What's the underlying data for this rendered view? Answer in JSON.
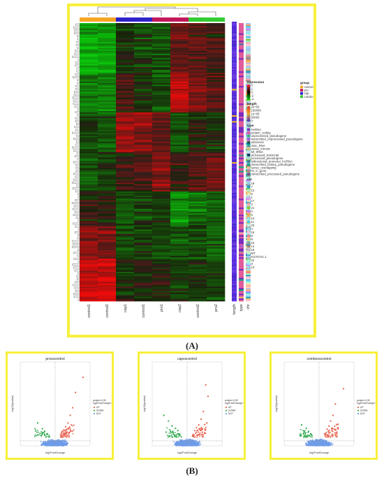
{
  "panelA": {
    "caption": "(A)",
    "samples": [
      "control1",
      "control2",
      "cap1",
      "control1",
      "pro1",
      "cap2",
      "control2",
      "pro2"
    ],
    "sample_groups": [
      "control",
      "control",
      "cap",
      "cap",
      "pro",
      "pro",
      "combo",
      "combo"
    ],
    "side_tracks": [
      "length",
      "type",
      "chr"
    ],
    "legend": {
      "group": {
        "title": "group",
        "items": [
          {
            "label": "control",
            "color": "#f5a623"
          },
          {
            "label": "pro",
            "color": "#c2185b"
          },
          {
            "label": "cap",
            "color": "#2e22c9"
          },
          {
            "label": "combo",
            "color": "#33cc33"
          }
        ]
      },
      "expression": {
        "title": "expression",
        "labels": [
          "4",
          "2",
          "0",
          "-2",
          "-4"
        ]
      },
      "length": {
        "title": "length",
        "labels": [
          "2e+05",
          "150000",
          "1e+05",
          "50000",
          "0"
        ]
      },
      "type": {
        "title": "type",
        "items": [
          {
            "label": "lncRNA",
            "color": "#7b2cbf"
          },
          {
            "label": "protein_coding",
            "color": "#e05c9b"
          },
          {
            "label": "unprocessed_pseudogene",
            "color": "#3bb273"
          },
          {
            "label": "transcribed_unprocessed_pseudogene",
            "color": "#9b5de5"
          },
          {
            "label": "antisense",
            "color": "#264653"
          },
          {
            "label": "misc_RNA",
            "color": "#2a9d8f"
          },
          {
            "label": "sense_intronic",
            "color": "#e9c46a"
          },
          {
            "label": "Mt_tRNA",
            "color": "#bde0fe"
          },
          {
            "label": "processed_transcript",
            "color": "#1d3557"
          },
          {
            "label": "processed_pseudogene",
            "color": "#a8dadc"
          },
          {
            "label": "bidirectional_promoter_lncRNA",
            "color": "#457b9d"
          },
          {
            "label": "transcribed_unitary_pseudogene",
            "color": "#06a77d"
          },
          {
            "label": "sense_overlapping",
            "color": "#ffb4a2"
          },
          {
            "label": "IG_C_gene",
            "color": "#b5838d"
          },
          {
            "label": "transcribed_processed_pseudogene",
            "color": "#6d597a"
          }
        ]
      },
      "chr": {
        "title": "chr",
        "items": [
          {
            "label": "19",
            "color": "#8ecae6"
          },
          {
            "label": "7",
            "color": "#219ebc"
          },
          {
            "label": "12",
            "color": "#a8e6cf"
          },
          {
            "label": "5",
            "color": "#dcedc1"
          },
          {
            "label": "1",
            "color": "#c9b6e4"
          },
          {
            "label": "17",
            "color": "#ffd3b6"
          },
          {
            "label": "3",
            "color": "#ffaaa5"
          },
          {
            "label": "21",
            "color": "#8ac926"
          },
          {
            "label": "2",
            "color": "#c77dff"
          },
          {
            "label": "6",
            "color": "#f4a261"
          },
          {
            "label": "10",
            "color": "#90e0ef"
          },
          {
            "label": "11",
            "color": "#48cae4"
          },
          {
            "label": "20",
            "color": "#b8f2e6"
          },
          {
            "label": "4",
            "color": "#aed9e0"
          },
          {
            "label": "16",
            "color": "#ffc8dd"
          },
          {
            "label": "9",
            "color": "#f28482"
          },
          {
            "label": "8",
            "color": "#f6bd60"
          },
          {
            "label": "15",
            "color": "#84a59d"
          },
          {
            "label": "14",
            "color": "#9d8189"
          },
          {
            "label": "18",
            "color": "#cdb4db"
          },
          {
            "label": "MT",
            "color": "#b9fbc0"
          },
          {
            "label": "KI270721.1",
            "color": "#a3c4f3"
          },
          {
            "label": "22",
            "color": "#98f5e1"
          },
          {
            "label": "X",
            "color": "#8eecf5"
          },
          {
            "label": "13",
            "color": "#90dbf4"
          }
        ]
      }
    }
  },
  "panelB": {
    "caption": "(B)",
    "plots": [
      {
        "title": "provscontrol"
      },
      {
        "title": "capvscontrol"
      },
      {
        "title": "combovscontrol"
      }
    ],
    "xlabel": "log2FoldChange",
    "ylabel": "-log10(pvalue)",
    "threshold_text": [
      "pvalue<0.05",
      "log2FoldChange>0"
    ],
    "legend": [
      "UP",
      "DOWN",
      "NOT"
    ],
    "colors": {
      "up": "#e8604c",
      "down": "#2aa84a",
      "not": "#6f9ce8"
    }
  },
  "chart_data": [
    {
      "type": "heatmap",
      "title": "",
      "columns": [
        "control1",
        "control2",
        "cap1",
        "control1",
        "pro1",
        "cap2",
        "control2",
        "pro2"
      ],
      "color_scale": {
        "min": -4,
        "max": 4,
        "low": "#00cc00",
        "mid": "#000000",
        "high": "#ff2a2a"
      },
      "row_clusters": [
        {
          "rows_fraction": 0.18,
          "values": [
            -2.2,
            -2.0,
            -0.3,
            -0.6,
            -0.8,
            0.8,
            0.6,
            0.3
          ]
        },
        {
          "rows_fraction": 0.14,
          "values": [
            -1.4,
            -1.6,
            0.2,
            -0.2,
            -0.6,
            1.8,
            1.2,
            0.6
          ]
        },
        {
          "rows_fraction": 0.14,
          "values": [
            -0.6,
            -0.8,
            1.4,
            1.2,
            0.8,
            -0.8,
            -0.2,
            -0.4
          ]
        },
        {
          "rows_fraction": 0.14,
          "values": [
            -0.8,
            -0.6,
            0.3,
            0.4,
            1.2,
            0.2,
            0.6,
            0.9
          ]
        },
        {
          "rows_fraction": 0.12,
          "values": [
            0.2,
            -0.1,
            -0.8,
            -0.6,
            -0.4,
            -1.6,
            -1.2,
            -0.8
          ]
        },
        {
          "rows_fraction": 0.12,
          "values": [
            1.2,
            1.0,
            -0.8,
            -0.5,
            -0.6,
            -0.9,
            -0.7,
            -0.9
          ]
        },
        {
          "rows_fraction": 0.16,
          "values": [
            2.0,
            2.2,
            -0.4,
            -0.1,
            0.0,
            -0.5,
            -0.3,
            -0.6
          ]
        }
      ]
    },
    {
      "type": "scatter",
      "title": "provscontrol",
      "xlabel": "log2FoldChange",
      "ylabel": "-log10(pvalue)",
      "series": [
        {
          "name": "UP",
          "points": [
            [
              4.8,
              18
            ],
            [
              3.5,
              14
            ],
            [
              3.0,
              10
            ],
            [
              2.6,
              8
            ],
            [
              2.2,
              6
            ],
            [
              1.8,
              5
            ],
            [
              1.5,
              4.2
            ],
            [
              1.2,
              3.8
            ],
            [
              2.8,
              5.5
            ],
            [
              1.9,
              3.4
            ]
          ]
        },
        {
          "name": "DOWN",
          "points": [
            [
              -3.0,
              6
            ],
            [
              -2.2,
              4.5
            ],
            [
              -1.8,
              3.8
            ],
            [
              -2.6,
              3.2
            ],
            [
              -1.4,
              3.0
            ],
            [
              -3.4,
              2.8
            ]
          ]
        }
      ]
    },
    {
      "type": "scatter",
      "title": "capvscontrol",
      "xlabel": "log2FoldChange",
      "ylabel": "-log10(pvalue)",
      "series": [
        {
          "name": "UP",
          "points": [
            [
              3.2,
              16
            ],
            [
              3.6,
              13
            ],
            [
              2.8,
              9
            ],
            [
              2.4,
              7
            ],
            [
              2.0,
              5.5
            ],
            [
              1.6,
              4.8
            ],
            [
              3.4,
              6
            ],
            [
              1.3,
              4
            ],
            [
              2.6,
              4.4
            ],
            [
              1.9,
              3.6
            ]
          ]
        },
        {
          "name": "DOWN",
          "points": [
            [
              -4.0,
              8
            ],
            [
              -3.2,
              6.5
            ],
            [
              -2.6,
              5.2
            ],
            [
              -2.0,
              4.6
            ],
            [
              -1.6,
              4.0
            ],
            [
              -3.6,
              3.6
            ],
            [
              -2.4,
              3.4
            ],
            [
              -1.3,
              3.1
            ]
          ]
        }
      ]
    },
    {
      "type": "scatter",
      "title": "combovscontrol",
      "xlabel": "log2FoldChange",
      "ylabel": "-log10(pvalue)",
      "series": [
        {
          "name": "UP",
          "points": [
            [
              4.2,
              15
            ],
            [
              2.8,
              11
            ],
            [
              2.4,
              8
            ],
            [
              2.0,
              6.5
            ],
            [
              1.7,
              5.2
            ],
            [
              1.4,
              4.4
            ],
            [
              3.0,
              5.6
            ],
            [
              2.2,
              4.0
            ]
          ]
        },
        {
          "name": "DOWN",
          "points": [
            [
              -3.0,
              5.5
            ],
            [
              -2.2,
              4.6
            ],
            [
              -1.8,
              3.8
            ],
            [
              -2.6,
              3.4
            ],
            [
              -1.4,
              3.1
            ]
          ]
        }
      ]
    }
  ]
}
